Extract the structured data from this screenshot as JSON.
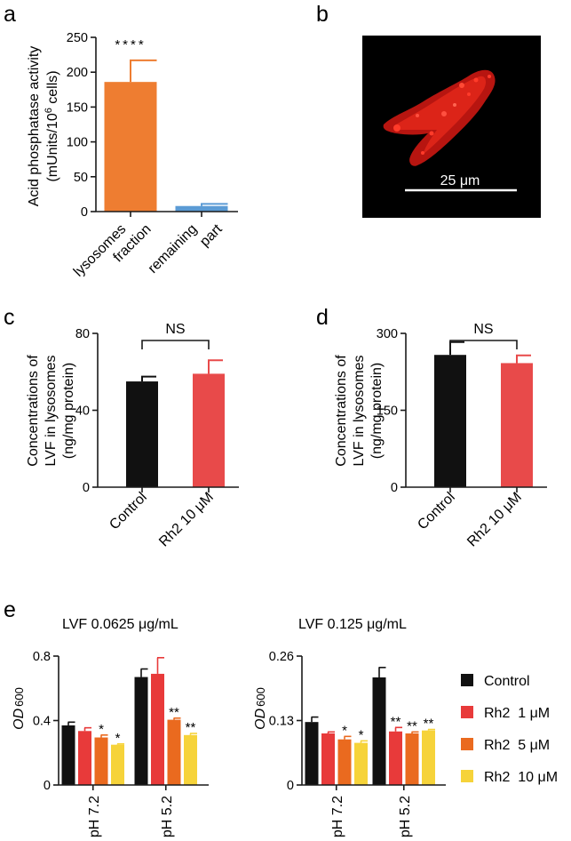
{
  "panels": {
    "a": "a",
    "b": "b",
    "c": "c",
    "d": "d",
    "e": "e"
  },
  "chart_data": [
    {
      "id": "a",
      "type": "bar",
      "ylabel_line1": "Acid phosphatase activity",
      "ylabel_line2_pre": "(mUnits/10",
      "ylabel_line2_sup": "6",
      "ylabel_line2_post": " cells)",
      "ylim": [
        0,
        250
      ],
      "yticks": [
        0,
        50,
        100,
        150,
        200,
        250
      ],
      "categories": [
        [
          "lysosomes",
          "fraction"
        ],
        [
          "remaining",
          "part"
        ]
      ],
      "values": [
        186,
        8
      ],
      "errors": [
        31,
        3
      ],
      "colors": [
        "#ee7d31",
        "#5b9bd5"
      ],
      "significance": [
        "****",
        ""
      ]
    },
    {
      "id": "c",
      "type": "bar",
      "ylabel_line1": "Concentrations of",
      "ylabel_line2": "LVF in lysosomes",
      "ylabel_line3": "(ng/mg protein)",
      "ylim": [
        0,
        80
      ],
      "yticks": [
        0,
        40,
        80
      ],
      "categories": [
        "Control",
        "Rh2 10 μM"
      ],
      "values": [
        55,
        59
      ],
      "errors": [
        2.5,
        7
      ],
      "colors": [
        "#111111",
        "#e84a4a"
      ],
      "comparison": "NS"
    },
    {
      "id": "d",
      "type": "bar",
      "ylabel_line1": "Concentrations of",
      "ylabel_line2": "LVF in lysosomes",
      "ylabel_line3": "(ng/mg protein)",
      "ylim": [
        0,
        300
      ],
      "yticks": [
        0,
        150,
        300
      ],
      "categories": [
        "Control",
        "Rh2 10 μM"
      ],
      "values": [
        258,
        242
      ],
      "errors": [
        25,
        15
      ],
      "colors": [
        "#111111",
        "#e84a4a"
      ],
      "comparison": "NS"
    },
    {
      "id": "e1",
      "type": "bar",
      "title": "LVF  0.0625 μg/mL",
      "ylabel_main": "OD",
      "ylabel_sub": "600",
      "ylim": [
        0,
        0.8
      ],
      "yticks": [
        "0",
        "0.4",
        "0.8"
      ],
      "ytick_values": [
        0,
        0.4,
        0.8
      ],
      "categories": [
        "pH 7.2",
        "pH 5.2"
      ],
      "series": [
        {
          "name": "Control",
          "values": [
            0.37,
            0.67
          ],
          "errors": [
            0.02,
            0.05
          ],
          "sig": [
            "",
            ""
          ]
        },
        {
          "name": "Rh2  1 μM",
          "values": [
            0.335,
            0.69
          ],
          "errors": [
            0.02,
            0.1
          ],
          "sig": [
            "",
            ""
          ]
        },
        {
          "name": "Rh2  5 μM",
          "values": [
            0.295,
            0.405
          ],
          "errors": [
            0.015,
            0.01
          ],
          "sig": [
            "*",
            "**"
          ]
        },
        {
          "name": "Rh2  10 μM",
          "values": [
            0.25,
            0.31
          ],
          "errors": [
            0.005,
            0.01
          ],
          "sig": [
            "*",
            "**"
          ]
        }
      ]
    },
    {
      "id": "e2",
      "type": "bar",
      "title": "LVF  0.125 μg/mL",
      "ylabel_main": "OD",
      "ylabel_sub": "600",
      "ylim": [
        0,
        0.26
      ],
      "yticks": [
        "0",
        "0.13",
        "0.26"
      ],
      "ytick_values": [
        0,
        0.13,
        0.26
      ],
      "categories": [
        "pH 7.2",
        "pH 5.2"
      ],
      "series": [
        {
          "name": "Control",
          "values": [
            0.127,
            0.217
          ],
          "errors": [
            0.01,
            0.02
          ],
          "sig": [
            "",
            ""
          ]
        },
        {
          "name": "Rh2  1 μM",
          "values": [
            0.104,
            0.108
          ],
          "errors": [
            0.003,
            0.008
          ],
          "sig": [
            "",
            "**"
          ]
        },
        {
          "name": "Rh2  5 μM",
          "values": [
            0.092,
            0.104
          ],
          "errors": [
            0.006,
            0.003
          ],
          "sig": [
            "*",
            "**"
          ]
        },
        {
          "name": "Rh2  10 μM",
          "values": [
            0.085,
            0.11
          ],
          "errors": [
            0.004,
            0.002
          ],
          "sig": [
            "*",
            "**"
          ]
        }
      ]
    }
  ],
  "legend": {
    "entries": [
      "Control",
      "Rh2  1 μM",
      "Rh2  5 μM",
      "Rh2  10 μM"
    ],
    "colors": [
      "#111111",
      "#e83a3a",
      "#ea6a1f",
      "#f6d33a"
    ]
  },
  "micrograph": {
    "scale_label": "25 μm",
    "background": "#000000",
    "cell_color": "#e0261a"
  }
}
